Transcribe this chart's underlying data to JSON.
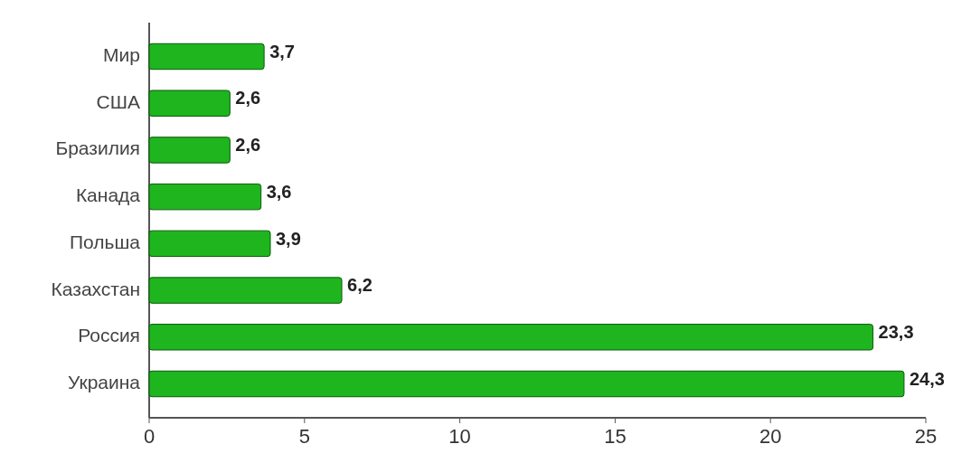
{
  "chart_data": {
    "type": "bar",
    "orientation": "horizontal",
    "categories": [
      "Мир",
      "США",
      "Бразилия",
      "Канада",
      "Польша",
      "Казахстан",
      "Россия",
      "Украина"
    ],
    "values": [
      3.7,
      2.6,
      2.6,
      3.6,
      3.9,
      6.2,
      23.3,
      24.3
    ],
    "value_labels": [
      "3,7",
      "2,6",
      "2,6",
      "3,6",
      "3,9",
      "6,2",
      "23,3",
      "24,3"
    ],
    "color": "#1fb51f",
    "xlim": [
      0,
      25
    ],
    "xticks": [
      0,
      5,
      10,
      15,
      20,
      25
    ],
    "grid": false
  }
}
